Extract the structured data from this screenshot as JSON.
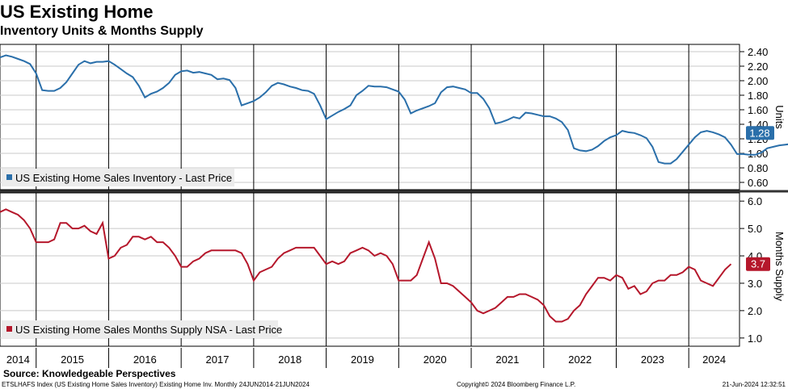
{
  "header": {
    "title": "US Existing Home",
    "subtitle": "Inventory Units & Months Supply"
  },
  "footer": {
    "source": "Source: Knowledgeable Perspectives",
    "index_info": "ETSLHAFS Index (US Existing Home Sales Inventory) Existing Home Inv.  Monthly 24JUN2014-21JUN2024",
    "copyright": "Copyright© 2024 Bloomberg Finance L.P.",
    "timestamp": "21-Jun-2024 12:32:51"
  },
  "colors": {
    "inventory": "#2a6faa",
    "months_supply": "#b5172b",
    "grid": "#000000",
    "divider": "#333333"
  },
  "chart_data": [
    {
      "type": "line",
      "title": "Inventory Units",
      "ylabel": "Units",
      "ylim": [
        0.5,
        2.5
      ],
      "yticks": [
        "2.40",
        "2.20",
        "2.00",
        "1.80",
        "1.60",
        "1.40",
        "1.20",
        "1.00",
        "0.80",
        "0.60"
      ],
      "last_value_label": "1.28",
      "legend": "US Existing Home Sales Inventory - Last Price",
      "x_start": 2014.5,
      "x_step": 0.0833333,
      "values": [
        2.32,
        2.35,
        2.33,
        2.3,
        2.27,
        2.23,
        2.1,
        1.87,
        1.86,
        1.86,
        1.9,
        1.98,
        2.1,
        2.22,
        2.27,
        2.24,
        2.26,
        2.26,
        2.27,
        2.22,
        2.16,
        2.1,
        2.05,
        1.93,
        1.77,
        1.82,
        1.85,
        1.9,
        1.97,
        2.08,
        2.13,
        2.14,
        2.11,
        2.12,
        2.1,
        2.08,
        2.02,
        2.03,
        2.01,
        1.9,
        1.66,
        1.69,
        1.72,
        1.77,
        1.84,
        1.93,
        1.97,
        1.95,
        1.92,
        1.9,
        1.87,
        1.86,
        1.82,
        1.66,
        1.47,
        1.52,
        1.57,
        1.61,
        1.66,
        1.8,
        1.86,
        1.93,
        1.92,
        1.92,
        1.91,
        1.88,
        1.85,
        1.74,
        1.55,
        1.59,
        1.62,
        1.65,
        1.69,
        1.84,
        1.91,
        1.92,
        1.9,
        1.88,
        1.83,
        1.83,
        1.75,
        1.62,
        1.41,
        1.43,
        1.46,
        1.5,
        1.48,
        1.56,
        1.55,
        1.53,
        1.51,
        1.51,
        1.48,
        1.43,
        1.32,
        1.07,
        1.04,
        1.03,
        1.05,
        1.1,
        1.17,
        1.22,
        1.25,
        1.31,
        1.29,
        1.28,
        1.25,
        1.21,
        1.09,
        0.88,
        0.86,
        0.86,
        0.92,
        1.02,
        1.12,
        1.22,
        1.29,
        1.31,
        1.29,
        1.26,
        1.22,
        1.12,
        0.99,
        0.99,
        0.98,
        0.98,
        1.01,
        1.07,
        1.09,
        1.11,
        1.12,
        1.13,
        1.15,
        1.16,
        1.13,
        1.01,
        1.02,
        1.06,
        1.11,
        1.19,
        1.28
      ]
    },
    {
      "type": "line",
      "title": "Months Supply",
      "ylabel": "Months Supply",
      "ylim": [
        0.7,
        6.3
      ],
      "yticks": [
        "6.0",
        "5.0",
        "4.0",
        "3.0",
        "2.0",
        "1.0"
      ],
      "last_value_label": "3.7",
      "legend": "US Existing Home Sales Months Supply NSA - Last Price",
      "x_start": 2014.5,
      "x_step": 0.0833333,
      "values": [
        5.6,
        5.7,
        5.6,
        5.5,
        5.3,
        5.0,
        4.5,
        4.5,
        4.5,
        4.6,
        5.2,
        5.2,
        5.0,
        5.0,
        5.1,
        4.9,
        4.8,
        5.2,
        3.9,
        4.0,
        4.3,
        4.4,
        4.7,
        4.7,
        4.6,
        4.7,
        4.5,
        4.5,
        4.3,
        4.0,
        3.6,
        3.6,
        3.8,
        3.9,
        4.1,
        4.2,
        4.2,
        4.2,
        4.2,
        4.2,
        4.1,
        3.7,
        3.1,
        3.4,
        3.5,
        3.6,
        3.9,
        4.1,
        4.2,
        4.3,
        4.3,
        4.3,
        4.3,
        4.0,
        3.7,
        3.8,
        3.7,
        3.8,
        4.1,
        4.2,
        4.3,
        4.2,
        4.0,
        4.1,
        4.0,
        3.7,
        3.1,
        3.1,
        3.1,
        3.3,
        3.9,
        4.5,
        3.9,
        3.0,
        3.0,
        2.9,
        2.7,
        2.5,
        2.3,
        2.0,
        1.9,
        2.0,
        2.1,
        2.3,
        2.5,
        2.5,
        2.6,
        2.6,
        2.5,
        2.4,
        2.2,
        1.8,
        1.6,
        1.6,
        1.7,
        2.0,
        2.2,
        2.6,
        2.9,
        3.2,
        3.2,
        3.1,
        3.3,
        3.2,
        2.8,
        2.9,
        2.6,
        2.7,
        3.0,
        3.1,
        3.1,
        3.3,
        3.3,
        3.4,
        3.6,
        3.5,
        3.1,
        3.0,
        2.9,
        3.2,
        3.5,
        3.7
      ]
    }
  ],
  "x_axis": {
    "years": [
      "2014",
      "2015",
      "2016",
      "2017",
      "2018",
      "2019",
      "2020",
      "2021",
      "2022",
      "2023",
      "2024"
    ]
  }
}
